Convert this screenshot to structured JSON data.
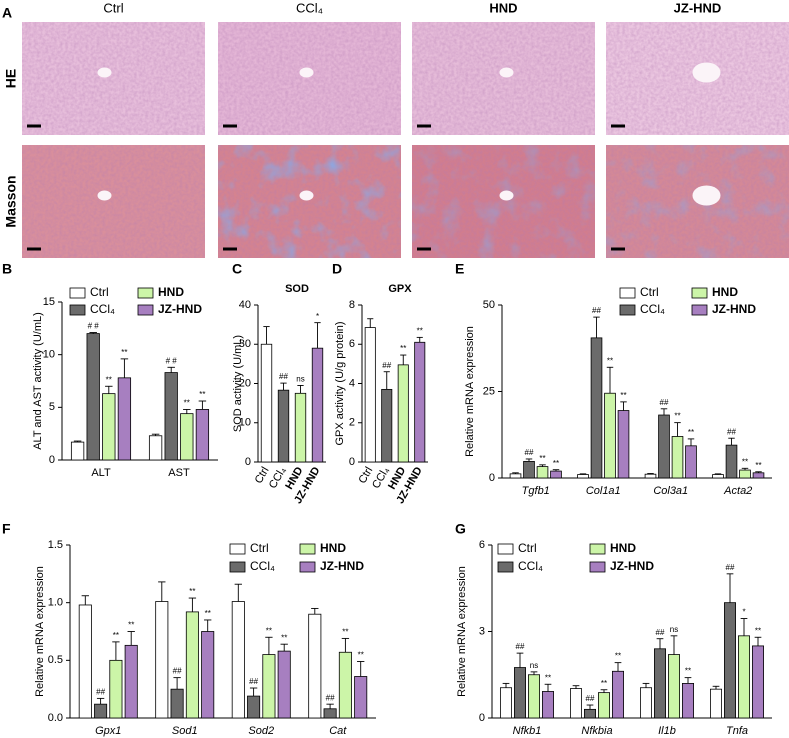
{
  "histology": {
    "panel": "A",
    "columns": [
      "Ctrl",
      "CCl₄",
      "HND",
      "JZ-HND"
    ],
    "rows": [
      "HE",
      "Masson"
    ]
  },
  "chart_data": [
    {
      "type": "bar",
      "panel": "B",
      "y_label": "ALT and AST activity (U/mL)",
      "categories": [
        "ALT",
        "AST"
      ],
      "ylim": [
        0,
        15
      ],
      "yticks": [
        0,
        5,
        10,
        15
      ],
      "series": [
        {
          "name": "Ctrl",
          "color": "#ffffff",
          "values": [
            1.7,
            2.3
          ],
          "errors": [
            0.1,
            0.15
          ],
          "sig": [
            null,
            null
          ]
        },
        {
          "name": "CCl₄",
          "color": "#6b6b6b",
          "values": [
            12.0,
            8.3
          ],
          "errors": [
            0.1,
            0.5
          ],
          "sig": [
            "# #",
            "# #"
          ]
        },
        {
          "name": "HND",
          "color": "#ccf5a8",
          "values": [
            6.3,
            4.4
          ],
          "errors": [
            0.7,
            0.4
          ],
          "sig": [
            "**",
            "**"
          ]
        },
        {
          "name": "JZ-HND",
          "color": "#a77fc0",
          "values": [
            7.8,
            4.8
          ],
          "errors": [
            1.8,
            0.8
          ],
          "sig": [
            "**",
            "**"
          ]
        }
      ]
    },
    {
      "type": "bar",
      "panel": "C",
      "title": "SOD",
      "y_label": "SOD activity (U/mL)",
      "categories": [
        "Ctrl",
        "CCl₄",
        "HND",
        "JZ-HND"
      ],
      "colors": [
        "#ffffff",
        "#6b6b6b",
        "#ccf5a8",
        "#a77fc0"
      ],
      "values": [
        30,
        18.3,
        17.5,
        29
      ],
      "errors": [
        4.5,
        1.8,
        2,
        6.5
      ],
      "sig": [
        null,
        "##",
        "ns",
        "*"
      ],
      "ylim": [
        0,
        40
      ],
      "yticks": [
        0,
        10,
        20,
        30,
        40
      ]
    },
    {
      "type": "bar",
      "panel": "D",
      "title": "GPX",
      "y_label": "GPX activity (U/g protein)",
      "categories": [
        "Ctrl",
        "CCl₄",
        "HND",
        "JZ-HND"
      ],
      "colors": [
        "#ffffff",
        "#6b6b6b",
        "#ccf5a8",
        "#a77fc0"
      ],
      "values": [
        6.85,
        3.7,
        4.95,
        6.1
      ],
      "errors": [
        0.45,
        0.9,
        0.5,
        0.25
      ],
      "sig": [
        null,
        "##",
        "**",
        "**"
      ],
      "ylim": [
        0,
        8
      ],
      "yticks": [
        0,
        2,
        4,
        6,
        8
      ]
    },
    {
      "type": "bar",
      "panel": "E",
      "y_label": "Relative mRNA expression",
      "categories": [
        "Tgfb1",
        "Col1a1",
        "Col3a1",
        "Acta2"
      ],
      "ylim": [
        0,
        50
      ],
      "yticks": [
        0,
        25,
        50
      ],
      "series": [
        {
          "name": "Ctrl",
          "color": "#ffffff",
          "values": [
            1.2,
            1.0,
            1.1,
            1.0
          ],
          "errors": [
            0.3,
            0.2,
            0.2,
            0.2
          ],
          "sig": [
            null,
            null,
            null,
            null
          ]
        },
        {
          "name": "CCl₄",
          "color": "#6b6b6b",
          "values": [
            4.8,
            40.5,
            18.2,
            9.5
          ],
          "errors": [
            0.7,
            6,
            1.8,
            2
          ],
          "sig": [
            "##",
            "##",
            "##",
            "##"
          ]
        },
        {
          "name": "HND",
          "color": "#ccf5a8",
          "values": [
            3.3,
            24.5,
            12,
            2.3
          ],
          "errors": [
            0.5,
            7.5,
            4,
            0.5
          ],
          "sig": [
            "**",
            "**",
            "**",
            "**"
          ]
        },
        {
          "name": "JZ-HND",
          "color": "#a77fc0",
          "values": [
            2.0,
            19.5,
            9.3,
            1.5
          ],
          "errors": [
            0.4,
            2.5,
            2,
            0.3
          ],
          "sig": [
            "**",
            "**",
            "**",
            "**"
          ]
        }
      ]
    },
    {
      "type": "bar",
      "panel": "F",
      "y_label": "Relative mRNA expression",
      "categories": [
        "Gpx1",
        "Sod1",
        "Sod2",
        "Cat"
      ],
      "ylim": [
        0,
        1.5
      ],
      "yticks": [
        {
          "value": 0,
          "label": "0.0"
        },
        0.5,
        {
          "value": 1,
          "label": "1.0"
        },
        1.5
      ],
      "series": [
        {
          "name": "Ctrl",
          "color": "#ffffff",
          "values": [
            0.98,
            1.01,
            1.01,
            0.9
          ],
          "errors": [
            0.08,
            0.17,
            0.15,
            0.05
          ],
          "sig": [
            null,
            null,
            null,
            null
          ]
        },
        {
          "name": "CCl₄",
          "color": "#6b6b6b",
          "values": [
            0.12,
            0.25,
            0.19,
            0.08
          ],
          "errors": [
            0.05,
            0.1,
            0.07,
            0.04
          ],
          "sig": [
            "##",
            "##",
            "##",
            "##"
          ]
        },
        {
          "name": "HND",
          "color": "#ccf5a8",
          "values": [
            0.5,
            0.92,
            0.55,
            0.57
          ],
          "errors": [
            0.16,
            0.12,
            0.15,
            0.12
          ],
          "sig": [
            "**",
            "**",
            "**",
            "**"
          ]
        },
        {
          "name": "JZ-HND",
          "color": "#a77fc0",
          "values": [
            0.63,
            0.75,
            0.58,
            0.36
          ],
          "errors": [
            0.12,
            0.1,
            0.06,
            0.13
          ],
          "sig": [
            "**",
            "**",
            "**",
            "**"
          ]
        }
      ]
    },
    {
      "type": "bar",
      "panel": "G",
      "y_label": "Relative mRNA expression",
      "categories": [
        "Nfkb1",
        "Nfkbia",
        "Il1b",
        "Tnfa"
      ],
      "ylim": [
        0,
        6
      ],
      "yticks": [
        0,
        3,
        6
      ],
      "series": [
        {
          "name": "Ctrl",
          "color": "#ffffff",
          "values": [
            1.05,
            1.02,
            1.05,
            1.0
          ],
          "errors": [
            0.15,
            0.1,
            0.15,
            0.1
          ],
          "sig": [
            null,
            null,
            null,
            null
          ]
        },
        {
          "name": "CCl₄",
          "color": "#6b6b6b",
          "values": [
            1.75,
            0.3,
            2.4,
            4.0
          ],
          "errors": [
            0.5,
            0.15,
            0.35,
            1.0
          ],
          "sig": [
            "##",
            "##",
            "##",
            "##"
          ]
        },
        {
          "name": "HND",
          "color": "#ccf5a8",
          "values": [
            1.5,
            0.88,
            2.2,
            2.85
          ],
          "errors": [
            0.1,
            0.1,
            0.65,
            0.6
          ],
          "sig": [
            "ns",
            "**",
            "ns",
            "*"
          ]
        },
        {
          "name": "JZ-HND",
          "color": "#a77fc0",
          "values": [
            0.92,
            1.62,
            1.2,
            2.5
          ],
          "errors": [
            0.25,
            0.3,
            0.2,
            0.3
          ],
          "sig": [
            "**",
            "**",
            "**",
            "**"
          ]
        }
      ]
    }
  ]
}
